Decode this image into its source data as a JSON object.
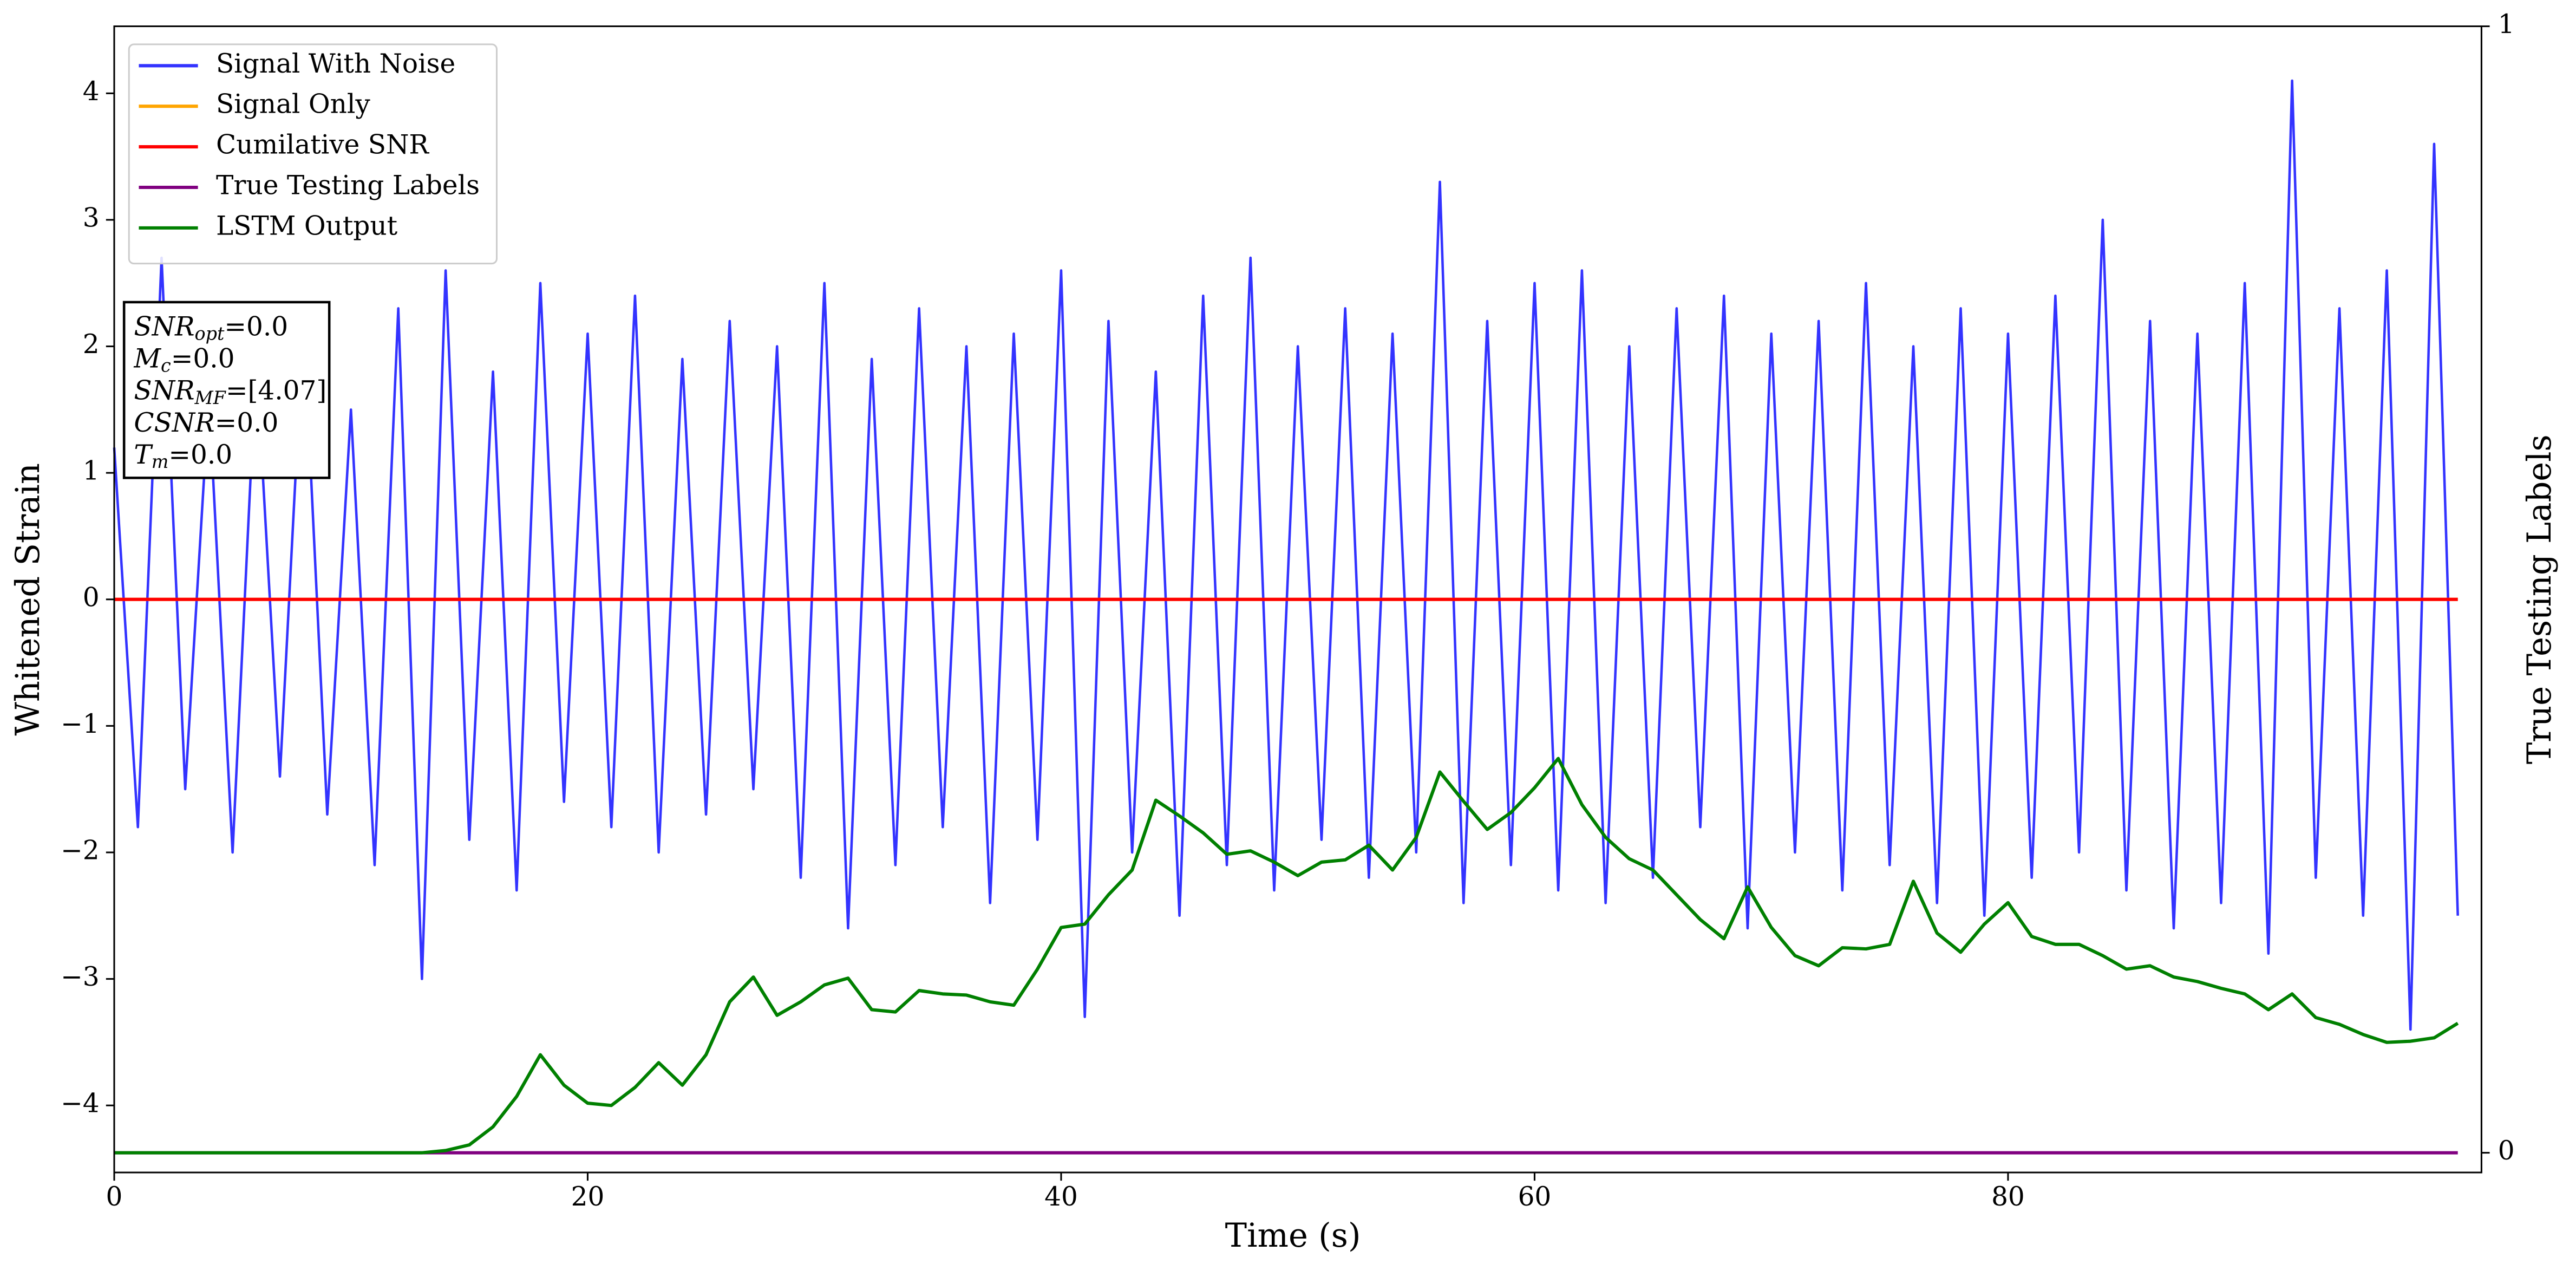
{
  "chart_data": {
    "type": "line",
    "xlabel": "Time (s)",
    "ylabel": "Whitened Strain",
    "y2label": "True Testing Labels",
    "legend": "upper left",
    "x": [
      0,
      1,
      2,
      3,
      4,
      5,
      6,
      7,
      8,
      9,
      10,
      11,
      12,
      13,
      14,
      15,
      16,
      17,
      18,
      19,
      20,
      21,
      22,
      23,
      24,
      25,
      26,
      27,
      28,
      29,
      30,
      31,
      32,
      33,
      34,
      35,
      36,
      37,
      38,
      39,
      40,
      41,
      42,
      43,
      44,
      45,
      46,
      47,
      48,
      49,
      50,
      51,
      52,
      53,
      54,
      55,
      56,
      57,
      58,
      59,
      60,
      61,
      62,
      63,
      64,
      65,
      66,
      67,
      68,
      69,
      70,
      71,
      72,
      73,
      74,
      75,
      76,
      77,
      78,
      79,
      80,
      81,
      82,
      83,
      84,
      85,
      86,
      87,
      88,
      89,
      90,
      91,
      92,
      93,
      94,
      95,
      96,
      97,
      98,
      99
    ],
    "xlim": [
      0,
      100
    ],
    "xticks": [
      0,
      20,
      40,
      60,
      80
    ],
    "ylim": [
      -4.53,
      4.53
    ],
    "yticks": [
      {
        "value": -4,
        "label": "−4"
      },
      {
        "value": -3,
        "label": "−3"
      },
      {
        "value": -2,
        "label": "−2"
      },
      {
        "value": -1,
        "label": "−1"
      },
      0,
      1,
      2,
      3,
      4
    ],
    "y2lim": [
      -0.0175,
      1
    ],
    "y2ticks": [
      0,
      1
    ],
    "series": [
      {
        "name": "Signal With Noise",
        "color": "#3333ff",
        "values": [
          1.2,
          -1.8,
          2.7,
          -1.5,
          1.6,
          -2.0,
          1.9,
          -1.4,
          2.2,
          -1.7,
          1.5,
          -2.1,
          2.3,
          -3.0,
          2.6,
          -1.9,
          1.8,
          -2.3,
          2.5,
          -1.6,
          2.1,
          -1.8,
          2.4,
          -2.0,
          1.9,
          -1.7,
          2.2,
          -1.5,
          2.0,
          -2.2,
          2.5,
          -2.6,
          1.9,
          -2.1,
          2.3,
          -1.8,
          2.0,
          -2.4,
          2.1,
          -1.9,
          2.6,
          -3.3,
          2.2,
          -2.0,
          1.8,
          -2.5,
          2.4,
          -2.1,
          2.7,
          -2.3,
          2.0,
          -1.9,
          2.3,
          -2.2,
          2.1,
          -2.0,
          3.3,
          -2.4,
          2.2,
          -2.1,
          2.5,
          -2.3,
          2.6,
          -2.4,
          2.0,
          -2.2,
          2.3,
          -1.8,
          2.4,
          -2.6,
          2.1,
          -2.0,
          2.2,
          -2.3,
          2.5,
          -2.1,
          2.0,
          -2.4,
          2.3,
          -2.5,
          2.1,
          -2.2,
          2.4,
          -2.0,
          3.0,
          -2.3,
          2.2,
          -2.6,
          2.1,
          -2.4,
          2.5,
          -2.8,
          4.1,
          -2.2,
          2.3,
          -2.5,
          2.6,
          -3.4,
          3.6,
          -2.5
        ]
      },
      {
        "name": "Signal Only",
        "color": "#ffa500",
        "values": [
          0,
          0,
          0,
          0,
          0,
          0,
          0,
          0,
          0,
          0,
          0,
          0,
          0,
          0,
          0,
          0,
          0,
          0,
          0,
          0,
          0,
          0,
          0,
          0,
          0,
          0,
          0,
          0,
          0,
          0,
          0,
          0,
          0,
          0,
          0,
          0,
          0,
          0,
          0,
          0,
          0,
          0,
          0,
          0,
          0,
          0,
          0,
          0,
          0,
          0,
          0,
          0,
          0,
          0,
          0,
          0,
          0,
          0,
          0,
          0,
          0,
          0,
          0,
          0,
          0,
          0,
          0,
          0,
          0,
          0,
          0,
          0,
          0,
          0,
          0,
          0,
          0,
          0,
          0,
          0,
          0,
          0,
          0,
          0,
          0,
          0,
          0,
          0,
          0,
          0,
          0,
          0,
          0,
          0,
          0,
          0,
          0,
          0,
          0,
          0
        ]
      },
      {
        "name": "Cumilative SNR",
        "color": "#ff0000",
        "values": [
          0,
          0,
          0,
          0,
          0,
          0,
          0,
          0,
          0,
          0,
          0,
          0,
          0,
          0,
          0,
          0,
          0,
          0,
          0,
          0,
          0,
          0,
          0,
          0,
          0,
          0,
          0,
          0,
          0,
          0,
          0,
          0,
          0,
          0,
          0,
          0,
          0,
          0,
          0,
          0,
          0,
          0,
          0,
          0,
          0,
          0,
          0,
          0,
          0,
          0,
          0,
          0,
          0,
          0,
          0,
          0,
          0,
          0,
          0,
          0,
          0,
          0,
          0,
          0,
          0,
          0,
          0,
          0,
          0,
          0,
          0,
          0,
          0,
          0,
          0,
          0,
          0,
          0,
          0,
          0,
          0,
          0,
          0,
          0,
          0,
          0,
          0,
          0,
          0,
          0,
          0,
          0,
          0,
          0,
          0,
          0,
          0,
          0,
          0,
          0
        ]
      },
      {
        "name": "True Testing Labels",
        "color": "#800080",
        "axis": "y2",
        "values": [
          0,
          0,
          0,
          0,
          0,
          0,
          0,
          0,
          0,
          0,
          0,
          0,
          0,
          0,
          0,
          0,
          0,
          0,
          0,
          0,
          0,
          0,
          0,
          0,
          0,
          0,
          0,
          0,
          0,
          0,
          0,
          0,
          0,
          0,
          0,
          0,
          0,
          0,
          0,
          0,
          0,
          0,
          0,
          0,
          0,
          0,
          0,
          0,
          0,
          0,
          0,
          0,
          0,
          0,
          0,
          0,
          0,
          0,
          0,
          0,
          0,
          0,
          0,
          0,
          0,
          0,
          0,
          0,
          0,
          0,
          0,
          0,
          0,
          0,
          0,
          0,
          0,
          0,
          0,
          0,
          0,
          0,
          0,
          0,
          0,
          0,
          0,
          0,
          0,
          0,
          0,
          0,
          0,
          0,
          0,
          0,
          0,
          0,
          0,
          0
        ]
      },
      {
        "name": "LSTM Output",
        "color": "#008000",
        "axis": "y2",
        "values": [
          0,
          0,
          0,
          0,
          0,
          0,
          0,
          0,
          0,
          0,
          0,
          0,
          0,
          0,
          0.002,
          0.007,
          0.023,
          0.05,
          0.087,
          0.06,
          0.044,
          0.042,
          0.058,
          0.08,
          0.06,
          0.087,
          0.134,
          0.156,
          0.122,
          0.134,
          0.149,
          0.155,
          0.127,
          0.125,
          0.144,
          0.141,
          0.14,
          0.134,
          0.131,
          0.163,
          0.2,
          0.203,
          0.229,
          0.251,
          0.313,
          0.299,
          0.284,
          0.265,
          0.268,
          0.258,
          0.246,
          0.258,
          0.26,
          0.273,
          0.251,
          0.28,
          0.338,
          0.312,
          0.287,
          0.302,
          0.324,
          0.35,
          0.309,
          0.28,
          0.261,
          0.251,
          0.229,
          0.207,
          0.19,
          0.236,
          0.2,
          0.175,
          0.166,
          0.182,
          0.181,
          0.185,
          0.241,
          0.195,
          0.178,
          0.203,
          0.222,
          0.192,
          0.185,
          0.185,
          0.175,
          0.163,
          0.166,
          0.156,
          0.152,
          0.146,
          0.141,
          0.127,
          0.141,
          0.12,
          0.114,
          0.105,
          0.098,
          0.099,
          0.102,
          0.115
        ]
      }
    ],
    "annotation_box": [
      {
        "name": "SNR",
        "sub": "opt",
        "text": "=0.0"
      },
      {
        "name": "M",
        "sub": "c",
        "text": "=0.0"
      },
      {
        "name": "SNR",
        "sub": "MF",
        "text": "=[4.07]"
      },
      {
        "name": "CSNR",
        "text": "=0.0"
      },
      {
        "name": "T",
        "sub": "m",
        "text": "=0.0"
      }
    ]
  }
}
